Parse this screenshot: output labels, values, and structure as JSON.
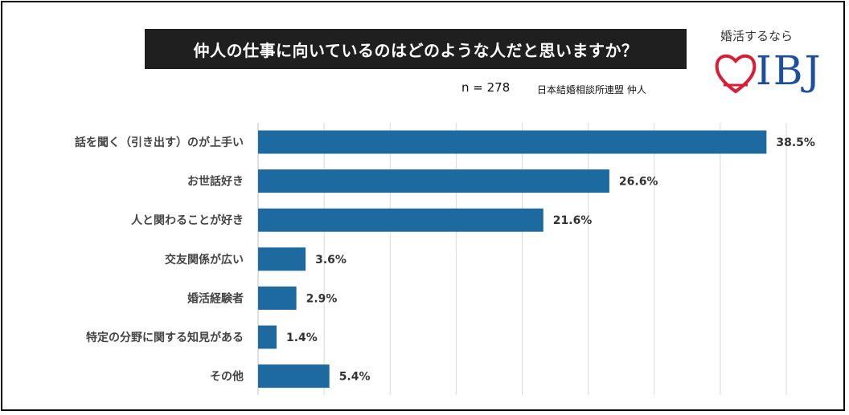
{
  "title": "仲人の仕事に向いているのはどのような人だと思いますか？",
  "sample_size": "n = 278",
  "source": "日本結婚相談所連盟 仲人",
  "logo": {
    "tagline": "婚活するなら",
    "brand": "IBJ",
    "heart_color": "#d81e34",
    "brand_color": "#1c4fa0"
  },
  "colors": {
    "bar": "#1d6aa0",
    "grid": "#d9d9d9",
    "title_bg": "#1f1f1f"
  },
  "chart_data": {
    "type": "bar",
    "orientation": "horizontal",
    "title": "仲人の仕事に向いているのはどのような人だと思いますか？",
    "categories": [
      "話を聞く（引き出す）のが上手い",
      "お世話好き",
      "人と関わることが好き",
      "交友関係が広い",
      "婚活経験者",
      "特定の分野に関する知見がある",
      "その他"
    ],
    "values": [
      38.5,
      26.6,
      21.6,
      3.6,
      2.9,
      1.4,
      5.4
    ],
    "value_labels": [
      "38.5%",
      "26.6%",
      "21.6%",
      "3.6%",
      "2.9%",
      "1.4%",
      "5.4%"
    ],
    "unit": "%",
    "xlim": [
      0,
      40
    ],
    "grid": true
  }
}
